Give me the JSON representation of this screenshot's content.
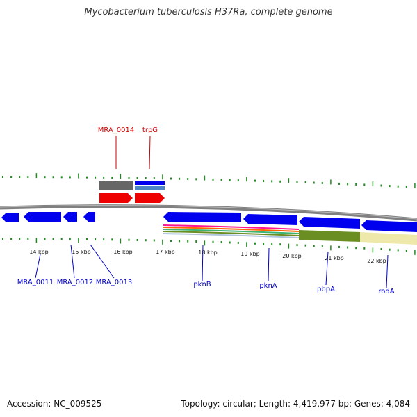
{
  "header": {
    "title": "Mycobacterium tuberculosis H37Ra, complete genome"
  },
  "footer": {
    "accession": "Accession: NC_009525",
    "summary": "Topology: circular; Length: 4,419,977 bp; Genes: 4,084"
  },
  "colors": {
    "forward_gene_label": "#cc0000",
    "reverse_gene_label": "#0000cc",
    "tick": "#228b22",
    "backbone": "#808080",
    "gene_blue": "#0000ee",
    "gene_red": "#ee0000",
    "gene_gray": "#666666",
    "gene_lightblue": "#4f86c6",
    "feature_olive": "#6b8e23",
    "feature_tan": "#eee8aa"
  },
  "scale": {
    "kbp_labels": [
      "14 kbp",
      "15 kbp",
      "16 kbp",
      "17 kbp",
      "18 kbp",
      "19 kbp",
      "20 kbp",
      "21 kbp",
      "22 kbp"
    ]
  },
  "genes": {
    "forward": [
      "MRA_0014",
      "trpG"
    ],
    "reverse": [
      "MRA_0011",
      "MRA_0012",
      "MRA_0013",
      "pknB",
      "pknA",
      "pbpA",
      "rodA"
    ]
  }
}
